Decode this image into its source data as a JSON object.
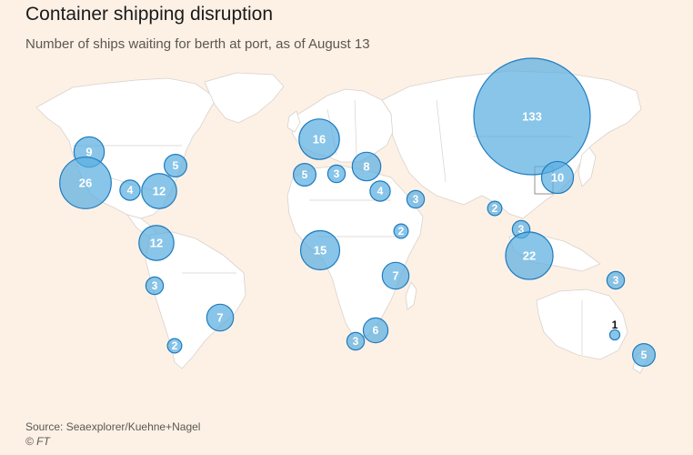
{
  "title": "Container shipping disruption",
  "subtitle": "Number of ships waiting for berth at port, as of August 13",
  "source": "Source: Seaexplorer/Kuehne+Nagel",
  "credit": "© FT",
  "colors": {
    "background": "#fdf1e6",
    "land": "#ffffff",
    "bubble_fill": "#5aaee0",
    "bubble_stroke": "#1f7bbf"
  },
  "chart_data": {
    "type": "bubble-map",
    "title": "Container shipping disruption",
    "subtitle": "Number of ships waiting for berth at port, as of August 13",
    "points": [
      {
        "label": "9",
        "value": 9
      },
      {
        "label": "26",
        "value": 26
      },
      {
        "label": "5",
        "value": 5
      },
      {
        "label": "4",
        "value": 4
      },
      {
        "label": "12",
        "value": 12
      },
      {
        "label": "12",
        "value": 12
      },
      {
        "label": "3",
        "value": 3
      },
      {
        "label": "7",
        "value": 7
      },
      {
        "label": "2",
        "value": 2
      },
      {
        "label": "16",
        "value": 16
      },
      {
        "label": "5",
        "value": 5
      },
      {
        "label": "3",
        "value": 3
      },
      {
        "label": "8",
        "value": 8
      },
      {
        "label": "4",
        "value": 4
      },
      {
        "label": "3",
        "value": 3
      },
      {
        "label": "2",
        "value": 2
      },
      {
        "label": "15",
        "value": 15
      },
      {
        "label": "7",
        "value": 7
      },
      {
        "label": "6",
        "value": 6
      },
      {
        "label": "3",
        "value": 3
      },
      {
        "label": "2",
        "value": 2
      },
      {
        "label": "133",
        "value": 133
      },
      {
        "label": "10",
        "value": 10
      },
      {
        "label": "3",
        "value": 3
      },
      {
        "label": "22",
        "value": 22
      },
      {
        "label": "3",
        "value": 3
      },
      {
        "label": "1",
        "value": 1
      },
      {
        "label": "5",
        "value": 5
      }
    ]
  }
}
